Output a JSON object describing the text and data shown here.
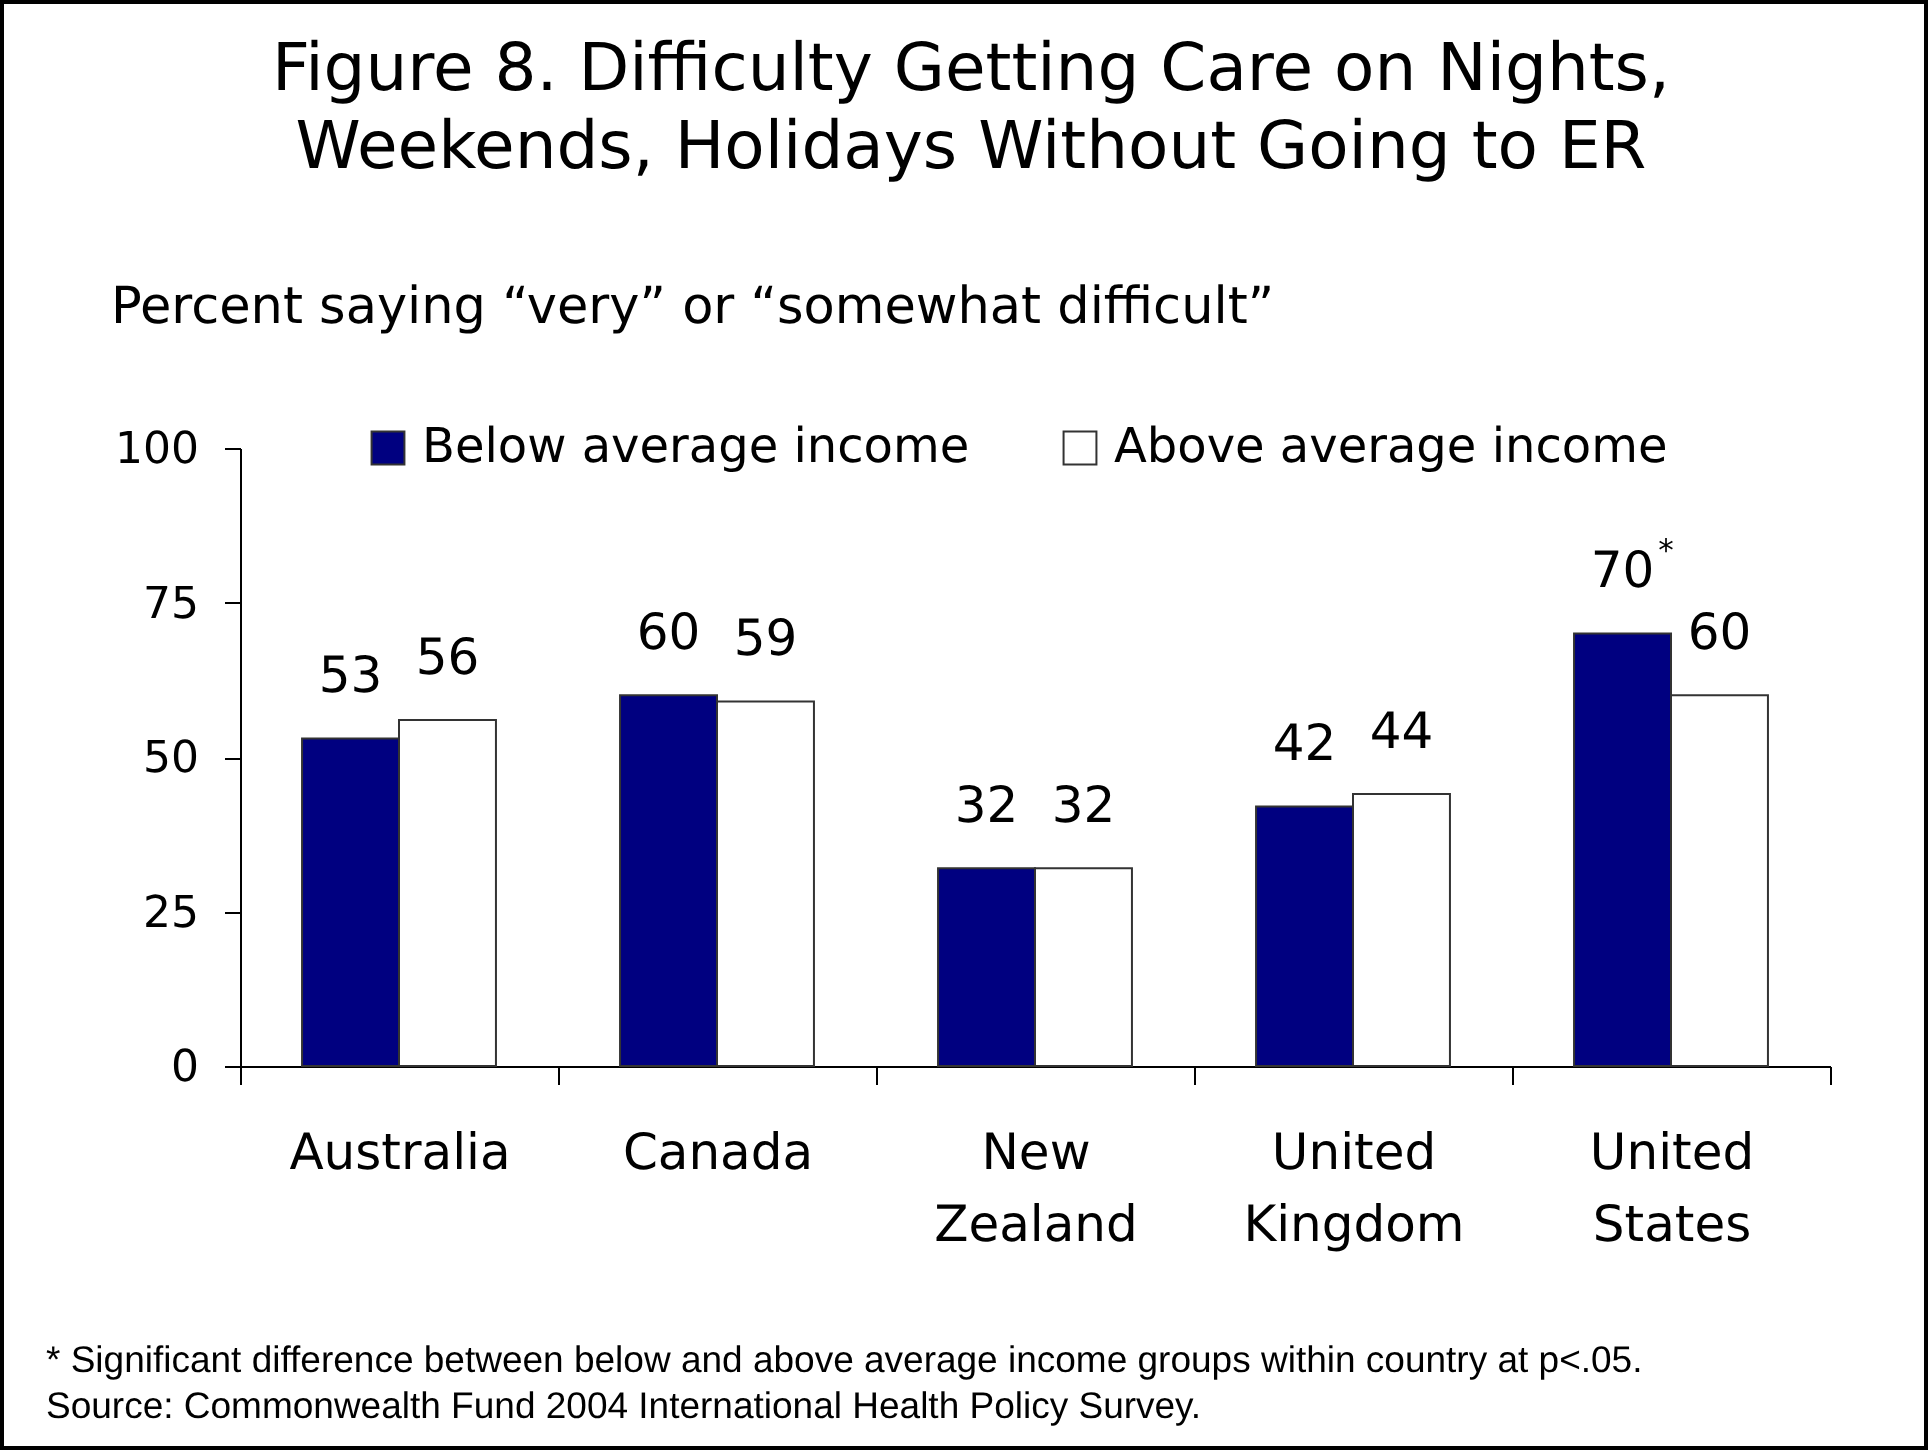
{
  "chart_data": {
    "type": "bar",
    "title": "Figure 8. Difficulty Getting Care on Nights, Weekends, Holidays Without Going to ER",
    "ylabel": "Percent saying “very” or “somewhat difficult”",
    "categories": [
      "Australia",
      "Canada",
      "New Zealand",
      "United Kingdom",
      "United States"
    ],
    "series": [
      {
        "name": "Below average income",
        "color": "#000080",
        "values": [
          53,
          60,
          32,
          42,
          70
        ],
        "value_labels": [
          "53",
          "60",
          "32",
          "42",
          "70$^{*}$"
        ]
      },
      {
        "name": "Above average income",
        "color": "#ffffff",
        "values": [
          56,
          59,
          32,
          44,
          60
        ],
        "value_labels": [
          "56",
          "59",
          "32",
          "44",
          "60"
        ]
      }
    ],
    "ylim": [
      0,
      100
    ],
    "yticks": [
      0,
      25,
      50,
      75,
      100
    ],
    "legend": "top",
    "annotations": [
      "* Significant difference between below and above average income groups within country at p<.05.",
      "Source: Commonwealth Fund 2004 International Health Policy Survey."
    ]
  }
}
